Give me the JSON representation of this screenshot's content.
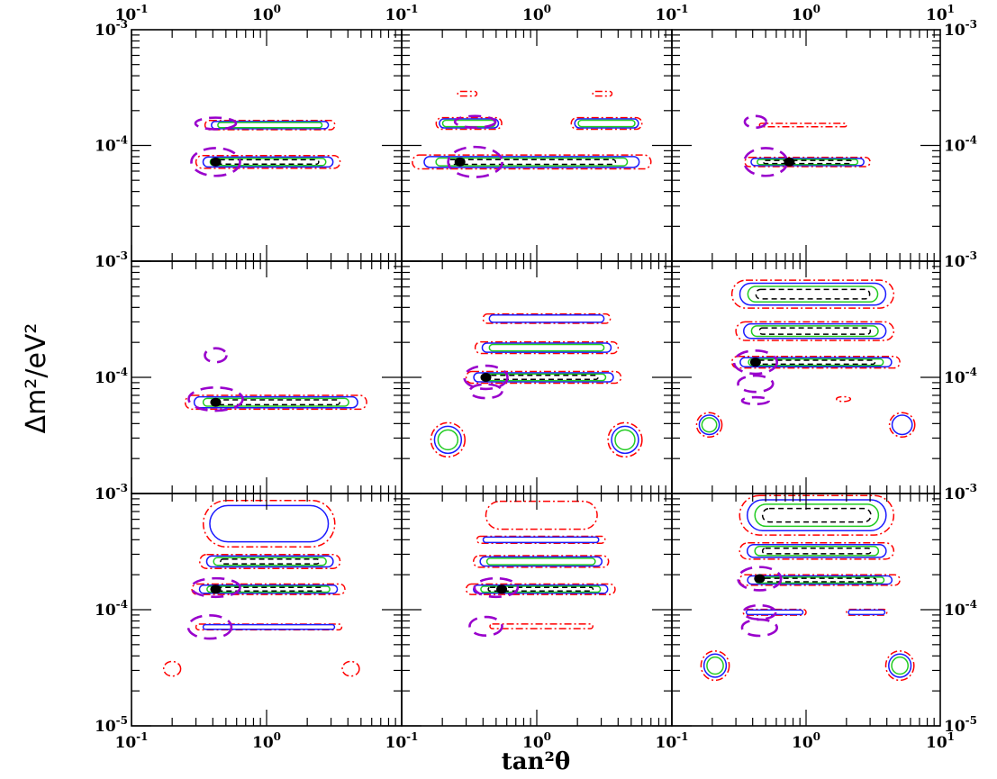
{
  "chart_data": {
    "type": "contour",
    "layout": {
      "rows": 3,
      "cols": 3
    },
    "xlabel": "tan²θ",
    "ylabel": "Δm²/eV²",
    "x_scale": "log",
    "y_scale": "log",
    "xlim": [
      0.1,
      10
    ],
    "ylim": [
      1e-05,
      0.001
    ],
    "x_tick_labels": [
      {
        "value": 0.1,
        "base": "10",
        "exp": "-1"
      },
      {
        "value": 1,
        "base": "10",
        "exp": "0"
      },
      {
        "value": 10,
        "base": "10",
        "exp": "1"
      }
    ],
    "y_tick_labels": [
      {
        "value": 1e-05,
        "base": "10",
        "exp": "-5"
      },
      {
        "value": 0.0001,
        "base": "10",
        "exp": "-4"
      },
      {
        "value": 0.001,
        "base": "10",
        "exp": "-3"
      }
    ],
    "line_styles": {
      "innermost": {
        "color": "#000000",
        "dash": "6,4"
      },
      "inner": {
        "color": "#22cc22",
        "dash": ""
      },
      "middle": {
        "color": "#1a1aff",
        "dash": ""
      },
      "outer": {
        "color": "#ff0000",
        "dash": "8,3,2,3"
      },
      "reference": {
        "color": "#9900cc",
        "dash": "14,8"
      }
    },
    "panels": [
      {
        "row": 0,
        "col": 0,
        "best_fit": {
          "x": 0.42,
          "y": 7.2e-05
        },
        "bands": [
          {
            "x": [
              0.3,
              3.5
            ],
            "y": 7.2e-05,
            "w": 0.055,
            "levels": 4
          },
          {
            "x": [
              0.35,
              3.2
            ],
            "y": 0.00015,
            "w": 0.04,
            "levels": 3
          }
        ],
        "islands": [],
        "reference": [
          {
            "x": 0.42,
            "y": 7.2e-05,
            "rx": 0.18,
            "ry": 0.12
          },
          {
            "x": 0.42,
            "y": 0.000155,
            "rx": 0.15,
            "ry": 0.05
          }
        ]
      },
      {
        "row": 0,
        "col": 1,
        "best_fit": {
          "x": 0.27,
          "y": 7.2e-05
        },
        "bands": [
          {
            "x": [
              0.12,
              7.0
            ],
            "y": 7.2e-05,
            "w": 0.06,
            "levels": 4
          },
          {
            "x": [
              0.18,
              0.55
            ],
            "y": 0.000155,
            "w": 0.05,
            "levels": 3
          },
          {
            "x": [
              1.8,
              6.0
            ],
            "y": 0.000155,
            "w": 0.05,
            "levels": 3
          },
          {
            "x": [
              0.26,
              0.36
            ],
            "y": 0.00028,
            "w": 0.02,
            "levels": 1
          },
          {
            "x": [
              2.6,
              3.6
            ],
            "y": 0.00028,
            "w": 0.02,
            "levels": 1
          }
        ],
        "islands": [],
        "reference": [
          {
            "x": 0.35,
            "y": 7.2e-05,
            "rx": 0.2,
            "ry": 0.13
          },
          {
            "x": 0.35,
            "y": 0.00016,
            "rx": 0.15,
            "ry": 0.05
          }
        ]
      },
      {
        "row": 0,
        "col": 2,
        "best_fit": {
          "x": 0.75,
          "y": 7.2e-05
        },
        "bands": [
          {
            "x": [
              0.35,
              3.0
            ],
            "y": 7.2e-05,
            "w": 0.04,
            "levels": 4
          },
          {
            "x": [
              0.45,
              2.0
            ],
            "y": 0.00015,
            "w": 0.015,
            "levels": 1
          }
        ],
        "islands": [],
        "reference": [
          {
            "x": 0.5,
            "y": 7.2e-05,
            "rx": 0.16,
            "ry": 0.12
          },
          {
            "x": 0.42,
            "y": 0.00016,
            "rx": 0.08,
            "ry": 0.05
          }
        ]
      },
      {
        "row": 1,
        "col": 0,
        "best_fit": {
          "x": 0.42,
          "y": 6.1e-05
        },
        "bands": [
          {
            "x": [
              0.25,
              5.5
            ],
            "y": 6.1e-05,
            "w": 0.06,
            "levels": 4
          }
        ],
        "islands": [],
        "reference": [
          {
            "x": 0.42,
            "y": 6.5e-05,
            "rx": 0.2,
            "ry": 0.1
          },
          {
            "x": 0.42,
            "y": 0.000155,
            "rx": 0.08,
            "ry": 0.06
          }
        ]
      },
      {
        "row": 1,
        "col": 1,
        "best_fit": {
          "x": 0.42,
          "y": 0.0001
        },
        "bands": [
          {
            "x": [
              0.3,
              4.2
            ],
            "y": 0.0001,
            "w": 0.05,
            "levels": 4
          },
          {
            "x": [
              0.35,
              4.0
            ],
            "y": 0.00018,
            "w": 0.05,
            "levels": 3
          },
          {
            "x": [
              0.4,
              3.5
            ],
            "y": 0.00032,
            "w": 0.04,
            "levels": 2
          }
        ],
        "islands": [
          {
            "x": 0.22,
            "y": 2.9e-05,
            "rx": 0.12,
            "ry": 0.14,
            "levels": 3
          },
          {
            "x": 4.5,
            "y": 2.9e-05,
            "rx": 0.12,
            "ry": 0.14,
            "levels": 3
          }
        ],
        "reference": [
          {
            "x": 0.42,
            "y": 0.0001,
            "rx": 0.16,
            "ry": 0.1
          },
          {
            "x": 0.42,
            "y": 7.6e-05,
            "rx": 0.12,
            "ry": 0.06
          }
        ]
      },
      {
        "row": 1,
        "col": 2,
        "best_fit": {
          "x": 0.42,
          "y": 0.000135
        },
        "bands": [
          {
            "x": [
              0.28,
              5.0
            ],
            "y": 0.000135,
            "w": 0.05,
            "levels": 4
          },
          {
            "x": [
              0.3,
              4.5
            ],
            "y": 0.00025,
            "w": 0.08,
            "levels": 4
          },
          {
            "x": [
              0.28,
              4.5
            ],
            "y": 0.00052,
            "w": 0.12,
            "levels": 4
          }
        ],
        "islands": [
          {
            "x": 0.19,
            "y": 3.9e-05,
            "rx": 0.09,
            "ry": 0.1,
            "levels": 3
          },
          {
            "x": 5.2,
            "y": 3.9e-05,
            "rx": 0.09,
            "ry": 0.1,
            "levels": 2
          },
          {
            "x": 1.9,
            "y": 6.5e-05,
            "rx": 0.05,
            "ry": 0.02,
            "levels": 1
          }
        ],
        "reference": [
          {
            "x": 0.42,
            "y": 0.000135,
            "rx": 0.16,
            "ry": 0.1
          },
          {
            "x": 0.42,
            "y": 8.8e-05,
            "rx": 0.13,
            "ry": 0.07
          },
          {
            "x": 0.42,
            "y": 6.3e-05,
            "rx": 0.1,
            "ry": 0.03
          }
        ]
      },
      {
        "row": 2,
        "col": 0,
        "best_fit": {
          "x": 0.42,
          "y": 0.00015
        },
        "bands": [
          {
            "x": [
              0.28,
              3.8
            ],
            "y": 0.00015,
            "w": 0.045,
            "levels": 4
          },
          {
            "x": [
              0.3,
              3.6
            ],
            "y": 7.1e-05,
            "w": 0.025,
            "levels": 2
          },
          {
            "x": [
              0.32,
              3.5
            ],
            "y": 0.00026,
            "w": 0.06,
            "levels": 4
          },
          {
            "x": [
              0.34,
              3.2
            ],
            "y": 0.00055,
            "w": 0.2,
            "levels": 2
          }
        ],
        "islands": [
          {
            "x": 0.2,
            "y": 3.1e-05,
            "rx": 0.06,
            "ry": 0.06,
            "levels": 1
          },
          {
            "x": 4.2,
            "y": 3.1e-05,
            "rx": 0.06,
            "ry": 0.06,
            "levels": 1
          }
        ],
        "reference": [
          {
            "x": 0.42,
            "y": 0.000155,
            "rx": 0.18,
            "ry": 0.08
          },
          {
            "x": 0.38,
            "y": 7.1e-05,
            "rx": 0.16,
            "ry": 0.1
          }
        ]
      },
      {
        "row": 2,
        "col": 1,
        "best_fit": {
          "x": 0.55,
          "y": 0.00015
        },
        "bands": [
          {
            "x": [
              0.3,
              3.8
            ],
            "y": 0.00015,
            "w": 0.045,
            "levels": 4
          },
          {
            "x": [
              0.34,
              3.4
            ],
            "y": 0.00026,
            "w": 0.05,
            "levels": 3
          },
          {
            "x": [
              0.36,
              3.2
            ],
            "y": 0.0004,
            "w": 0.03,
            "levels": 2
          },
          {
            "x": [
              0.45,
              2.6
            ],
            "y": 7.2e-05,
            "w": 0.02,
            "levels": 1
          },
          {
            "x": [
              0.42,
              2.8
            ],
            "y": 0.00065,
            "w": 0.12,
            "levels": 1
          }
        ],
        "islands": [],
        "reference": [
          {
            "x": 0.5,
            "y": 0.000155,
            "rx": 0.16,
            "ry": 0.08
          },
          {
            "x": 0.42,
            "y": 7.2e-05,
            "rx": 0.12,
            "ry": 0.08
          }
        ]
      },
      {
        "row": 2,
        "col": 2,
        "best_fit": {
          "x": 0.45,
          "y": 0.000185
        },
        "bands": [
          {
            "x": [
              0.32,
              5.0
            ],
            "y": 0.00018,
            "w": 0.045,
            "levels": 4
          },
          {
            "x": [
              0.32,
              4.5
            ],
            "y": 0.00032,
            "w": 0.07,
            "levels": 4
          },
          {
            "x": [
              0.32,
              4.5
            ],
            "y": 0.00065,
            "w": 0.17,
            "levels": 4
          },
          {
            "x": [
              0.34,
              1.0
            ],
            "y": 9.5e-05,
            "w": 0.025,
            "levels": 2
          },
          {
            "x": [
              2.0,
              4.0
            ],
            "y": 9.5e-05,
            "w": 0.025,
            "levels": 2
          }
        ],
        "islands": [
          {
            "x": 0.21,
            "y": 3.3e-05,
            "rx": 0.1,
            "ry": 0.12,
            "levels": 3
          },
          {
            "x": 5.0,
            "y": 3.3e-05,
            "rx": 0.1,
            "ry": 0.12,
            "levels": 3
          }
        ],
        "reference": [
          {
            "x": 0.45,
            "y": 0.000185,
            "rx": 0.16,
            "ry": 0.1
          },
          {
            "x": 0.45,
            "y": 9.5e-05,
            "rx": 0.12,
            "ry": 0.06
          },
          {
            "x": 0.45,
            "y": 7e-05,
            "rx": 0.13,
            "ry": 0.07
          }
        ]
      }
    ]
  }
}
